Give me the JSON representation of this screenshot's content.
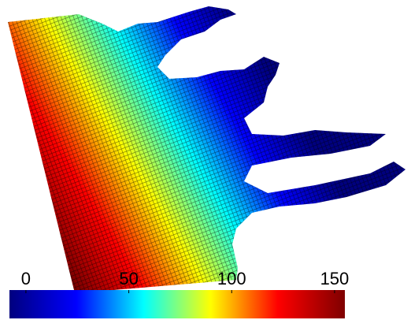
{
  "colorbar": {
    "lim": [
      -8,
      155
    ],
    "ticks": [
      0,
      50,
      100,
      150
    ],
    "colors": [
      "#00007f",
      "#0000ff",
      "#00ffff",
      "#ffff00",
      "#ff0000",
      "#7f0000"
    ]
  }
}
